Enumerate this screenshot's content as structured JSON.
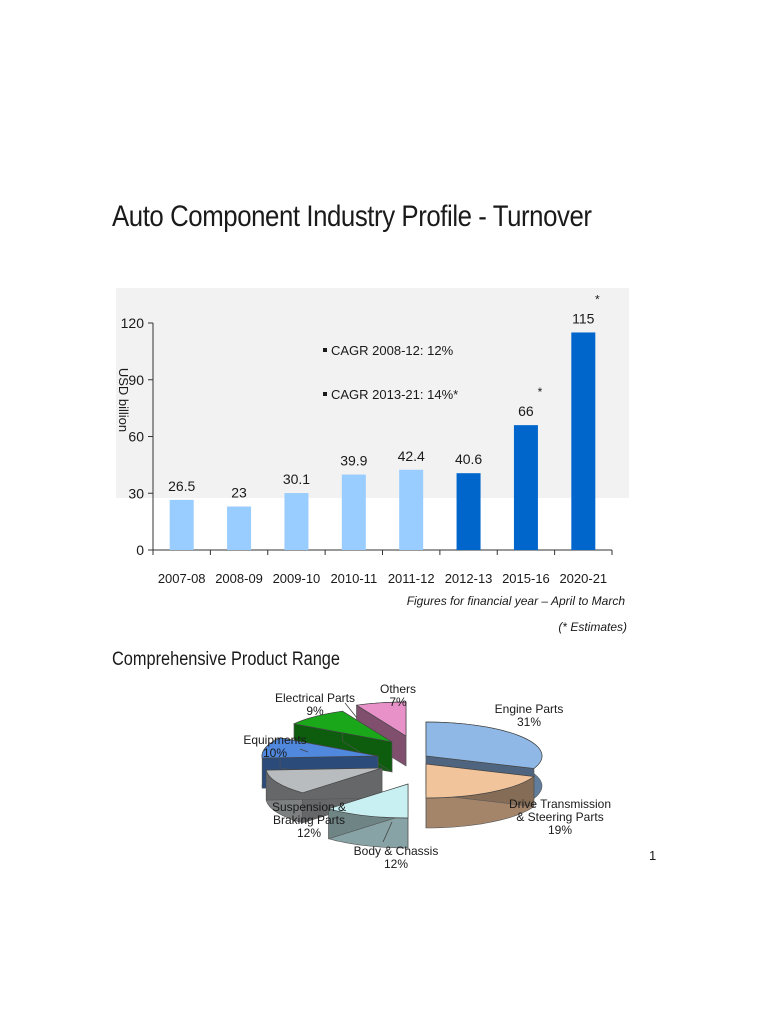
{
  "header": {
    "title": "Auto Component Industry Profile - Turnover",
    "section_title": "Comprehensive Product Range",
    "page_number": "1"
  },
  "colors": {
    "light_bar": "#99ccff",
    "dark_bar": "#0066cc",
    "panel": "#f2f2f2"
  },
  "chart_data": [
    {
      "type": "bar",
      "title": "",
      "ylabel": "USD billion",
      "categories": [
        "2007-08",
        "2008-09",
        "2009-10",
        "2010-11",
        "2011-12",
        "2012-13",
        "2015-16",
        "2020-21"
      ],
      "values": [
        26.5,
        23,
        30.1,
        39.9,
        42.4,
        40.6,
        66,
        115
      ],
      "value_labels": [
        "26.5",
        "23",
        "30.1",
        "39.9",
        "42.4",
        "40.6",
        "66",
        "115"
      ],
      "estimate_marks": [
        "",
        "",
        "",
        "",
        "",
        "",
        "*",
        "*"
      ],
      "bar_shade": [
        "light",
        "light",
        "light",
        "light",
        "light",
        "dark",
        "dark",
        "dark"
      ],
      "ylim": [
        0,
        120
      ],
      "yticks": [
        0,
        30,
        60,
        90,
        120
      ],
      "annotations": [
        "CAGR 2008-12: 12%",
        "CAGR 2013-21: 14%*"
      ],
      "footnotes": [
        "Figures for financial year – April to March",
        "(* Estimates)"
      ],
      "grid": false
    },
    {
      "type": "pie",
      "title": "",
      "slices": [
        {
          "label": "Engine Parts",
          "value": 31,
          "pct_label": "31%",
          "color": "#8fb8e6"
        },
        {
          "label": "Drive Transmission & Steering Parts",
          "value": 19,
          "pct_label": "19%",
          "color": "#f2c49c"
        },
        {
          "label": "Body & Chassis",
          "value": 12,
          "pct_label": "12%",
          "color": "#c8f0f2"
        },
        {
          "label": "Suspension & Braking Parts",
          "value": 12,
          "pct_label": "12%",
          "color": "#b8bcbe"
        },
        {
          "label": "Equipments",
          "value": 10,
          "pct_label": "10%",
          "color": "#4f88dd"
        },
        {
          "label": "Electrical Parts",
          "value": 9,
          "pct_label": "9%",
          "color": "#1aa81a"
        },
        {
          "label": "Others",
          "value": 7,
          "pct_label": "7%",
          "color": "#e890c8"
        }
      ]
    }
  ]
}
